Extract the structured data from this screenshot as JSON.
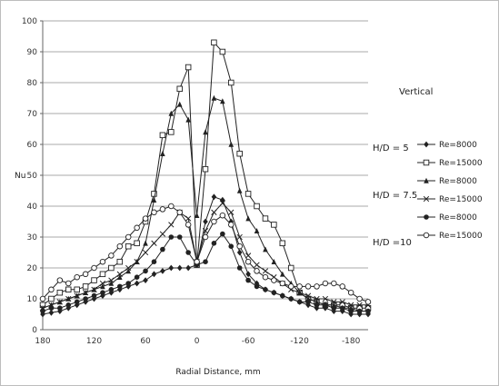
{
  "chart_data": {
    "type": "line",
    "xlabel": "Radial Distance, mm",
    "ylabel": "Nu",
    "xlim": [
      180,
      -200
    ],
    "ylim": [
      0,
      100
    ],
    "x_ticks": [
      180,
      120,
      60,
      0,
      -60,
      -120,
      -180
    ],
    "x_tick_labels": [
      "180",
      "120",
      "60",
      "0",
      "-60",
      "-120",
      "-180"
    ],
    "y_ticks": [
      0,
      10,
      20,
      30,
      40,
      50,
      60,
      70,
      80,
      90,
      100
    ],
    "y_tick_labels": [
      "0",
      "10",
      "20",
      "30",
      "40",
      "50",
      "60",
      "70",
      "80",
      "90",
      "100"
    ],
    "grid": "horizontal",
    "annotations": {
      "orientation": "Vertical",
      "groups": [
        "H/D = 5",
        "H/D = 7.5",
        "H/D =10"
      ]
    },
    "legend_position": "right",
    "series": [
      {
        "name": "Re=8000",
        "marker": "diamond",
        "color": "#222222",
        "x": [
          180,
          170,
          160,
          150,
          140,
          130,
          120,
          110,
          100,
          90,
          80,
          70,
          60,
          50,
          40,
          30,
          20,
          10,
          0,
          -10,
          -20,
          -30,
          -40,
          -50,
          -60,
          -70,
          -80,
          -90,
          -100,
          -110,
          -120,
          -130,
          -140,
          -150,
          -160,
          -170,
          -180,
          -190,
          -200
        ],
        "y": [
          5,
          5.5,
          6,
          7,
          8,
          9,
          10,
          11,
          12,
          13,
          14,
          15,
          16,
          18,
          19,
          20,
          20,
          20,
          21,
          35,
          43,
          42,
          35,
          25,
          18,
          15,
          13,
          12,
          11,
          10,
          9,
          8,
          7,
          7,
          6,
          6,
          5,
          5,
          5
        ]
      },
      {
        "name": "Re=15000",
        "marker": "square",
        "color": "#222222",
        "x": [
          180,
          170,
          160,
          150,
          140,
          130,
          120,
          110,
          100,
          90,
          80,
          70,
          60,
          50,
          40,
          30,
          20,
          10,
          0,
          -10,
          -20,
          -30,
          -40,
          -50,
          -60,
          -70,
          -80,
          -90,
          -100,
          -110,
          -120,
          -130,
          -140,
          -150,
          -160,
          -170,
          -180,
          -190,
          -200
        ],
        "y": [
          8,
          10,
          12,
          13,
          13,
          14,
          16,
          18,
          20,
          22,
          27,
          28,
          35,
          44,
          63,
          64,
          78,
          85,
          21,
          52,
          93,
          90,
          80,
          57,
          44,
          40,
          36,
          34,
          28,
          20,
          12,
          10,
          9,
          8,
          8,
          8,
          7,
          7,
          7
        ]
      },
      {
        "name": "Re=8000",
        "marker": "triangle",
        "color": "#222222",
        "x": [
          180,
          170,
          160,
          150,
          140,
          130,
          120,
          110,
          100,
          90,
          80,
          70,
          60,
          50,
          40,
          30,
          20,
          10,
          0,
          -10,
          -20,
          -30,
          -40,
          -50,
          -60,
          -70,
          -80,
          -90,
          -100,
          -110,
          -120,
          -130,
          -140,
          -150,
          -160,
          -170,
          -180,
          -190,
          -200
        ],
        "y": [
          7,
          8,
          9,
          10,
          11,
          12,
          13,
          14,
          15,
          17,
          19,
          22,
          28,
          42,
          57,
          70,
          73,
          68,
          37,
          64,
          75,
          74,
          60,
          45,
          36,
          32,
          26,
          22,
          18,
          15,
          12,
          10,
          9,
          8,
          8,
          7,
          7,
          6,
          6
        ]
      },
      {
        "name": "Re=15000",
        "marker": "x",
        "color": "#222222",
        "x": [
          180,
          170,
          160,
          150,
          140,
          130,
          120,
          110,
          100,
          90,
          80,
          70,
          60,
          50,
          40,
          30,
          20,
          10,
          0,
          -10,
          -20,
          -30,
          -40,
          -50,
          -60,
          -70,
          -80,
          -90,
          -100,
          -110,
          -120,
          -130,
          -140,
          -150,
          -160,
          -170,
          -180,
          -190,
          -200
        ],
        "y": [
          7,
          8,
          9,
          10,
          11,
          12,
          13,
          15,
          16,
          18,
          20,
          22,
          25,
          28,
          31,
          34,
          38,
          36,
          22,
          32,
          38,
          41,
          38,
          30,
          24,
          21,
          19,
          17,
          15,
          13,
          12,
          11,
          10,
          10,
          9,
          9,
          8,
          8,
          8
        ]
      },
      {
        "name": "Re=8000",
        "marker": "circle-filled",
        "color": "#222222",
        "x": [
          180,
          170,
          160,
          150,
          140,
          130,
          120,
          110,
          100,
          90,
          80,
          70,
          60,
          50,
          40,
          30,
          20,
          10,
          0,
          -10,
          -20,
          -30,
          -40,
          -50,
          -60,
          -70,
          -80,
          -90,
          -100,
          -110,
          -120,
          -130,
          -140,
          -150,
          -160,
          -170,
          -180,
          -190,
          -200
        ],
        "y": [
          6,
          7,
          7,
          8,
          9,
          10,
          11,
          12,
          13,
          14,
          15,
          17,
          19,
          22,
          26,
          30,
          30,
          25,
          21,
          22,
          28,
          31,
          27,
          20,
          16,
          14,
          13,
          12,
          11,
          10,
          9,
          9,
          8,
          8,
          7,
          7,
          6,
          6,
          6
        ]
      },
      {
        "name": "Re=15000",
        "marker": "circle-open",
        "color": "#222222",
        "x": [
          180,
          170,
          160,
          150,
          140,
          130,
          120,
          110,
          100,
          90,
          80,
          70,
          60,
          50,
          40,
          30,
          20,
          10,
          0,
          -10,
          -20,
          -30,
          -40,
          -50,
          -60,
          -70,
          -80,
          -90,
          -100,
          -110,
          -120,
          -130,
          -140,
          -150,
          -160,
          -170,
          -180,
          -190,
          -200
        ],
        "y": [
          10,
          13,
          16,
          15,
          17,
          18,
          20,
          22,
          24,
          27,
          30,
          33,
          36,
          38,
          39,
          40,
          38,
          34,
          22,
          30,
          35,
          37,
          34,
          27,
          22,
          19,
          17,
          16,
          15,
          14,
          14,
          14,
          14,
          15,
          15,
          14,
          12,
          10,
          9
        ]
      }
    ]
  }
}
